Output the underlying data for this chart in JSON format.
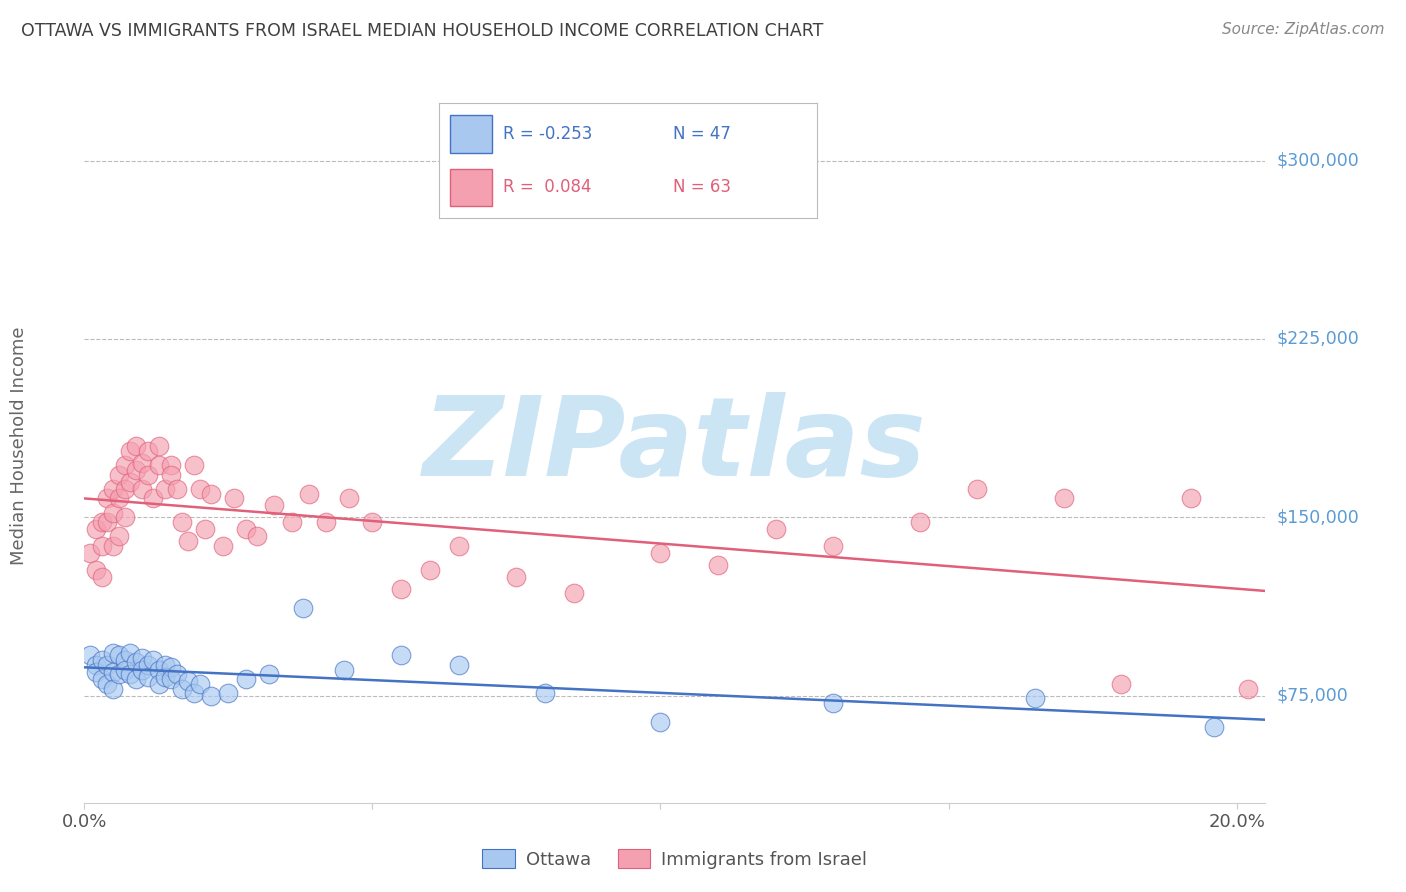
{
  "title": "OTTAWA VS IMMIGRANTS FROM ISRAEL MEDIAN HOUSEHOLD INCOME CORRELATION CHART",
  "source": "Source: ZipAtlas.com",
  "ylabel": "Median Household Income",
  "ytick_labels": [
    "$75,000",
    "$150,000",
    "$225,000",
    "$300,000"
  ],
  "ytick_values": [
    75000,
    150000,
    225000,
    300000
  ],
  "ymin": 30000,
  "ymax": 330000,
  "xmin": 0.0,
  "xmax": 0.205,
  "series1_label": "Ottawa",
  "series2_label": "Immigrants from Israel",
  "series1_color": "#a8c8f0",
  "series2_color": "#f4a0b0",
  "trendline1_color": "#4472c4",
  "trendline2_color": "#e0607a",
  "background_color": "#ffffff",
  "watermark": "ZIPatlas",
  "watermark_color": "#cce5f5",
  "title_color": "#404040",
  "source_color": "#888888",
  "ytick_color": "#5b9bd5",
  "xtick_color": "#555555",
  "grid_color": "#bbbbbb",
  "legend_r1": "R = -0.253",
  "legend_n1": "N = 47",
  "legend_r2": "R =  0.084",
  "legend_n2": "N = 63",
  "series1_x": [
    0.001,
    0.002,
    0.002,
    0.003,
    0.003,
    0.004,
    0.004,
    0.005,
    0.005,
    0.005,
    0.006,
    0.006,
    0.007,
    0.007,
    0.008,
    0.008,
    0.009,
    0.009,
    0.01,
    0.01,
    0.011,
    0.011,
    0.012,
    0.013,
    0.013,
    0.014,
    0.014,
    0.015,
    0.015,
    0.016,
    0.017,
    0.018,
    0.019,
    0.02,
    0.022,
    0.025,
    0.028,
    0.032,
    0.038,
    0.045,
    0.055,
    0.065,
    0.08,
    0.1,
    0.13,
    0.165,
    0.196
  ],
  "series1_y": [
    92000,
    88000,
    85000,
    90000,
    82000,
    88000,
    80000,
    93000,
    85000,
    78000,
    92000,
    84000,
    90000,
    86000,
    93000,
    84000,
    89000,
    82000,
    91000,
    86000,
    88000,
    83000,
    90000,
    86000,
    80000,
    88000,
    83000,
    87000,
    82000,
    84000,
    78000,
    81000,
    76000,
    80000,
    75000,
    76000,
    82000,
    84000,
    112000,
    86000,
    92000,
    88000,
    76000,
    64000,
    72000,
    74000,
    62000
  ],
  "series2_x": [
    0.001,
    0.002,
    0.002,
    0.003,
    0.003,
    0.003,
    0.004,
    0.004,
    0.005,
    0.005,
    0.005,
    0.006,
    0.006,
    0.006,
    0.007,
    0.007,
    0.007,
    0.008,
    0.008,
    0.009,
    0.009,
    0.01,
    0.01,
    0.011,
    0.011,
    0.012,
    0.013,
    0.013,
    0.014,
    0.015,
    0.015,
    0.016,
    0.017,
    0.018,
    0.019,
    0.02,
    0.021,
    0.022,
    0.024,
    0.026,
    0.028,
    0.03,
    0.033,
    0.036,
    0.039,
    0.042,
    0.046,
    0.05,
    0.055,
    0.06,
    0.065,
    0.075,
    0.085,
    0.1,
    0.11,
    0.12,
    0.13,
    0.145,
    0.155,
    0.17,
    0.18,
    0.192,
    0.202
  ],
  "series2_y": [
    135000,
    145000,
    128000,
    148000,
    138000,
    125000,
    158000,
    148000,
    162000,
    152000,
    138000,
    168000,
    158000,
    142000,
    172000,
    162000,
    150000,
    178000,
    165000,
    180000,
    170000,
    173000,
    162000,
    178000,
    168000,
    158000,
    172000,
    180000,
    162000,
    172000,
    168000,
    162000,
    148000,
    140000,
    172000,
    162000,
    145000,
    160000,
    138000,
    158000,
    145000,
    142000,
    155000,
    148000,
    160000,
    148000,
    158000,
    148000,
    120000,
    128000,
    138000,
    125000,
    118000,
    135000,
    130000,
    145000,
    138000,
    148000,
    162000,
    158000,
    80000,
    158000,
    78000
  ]
}
